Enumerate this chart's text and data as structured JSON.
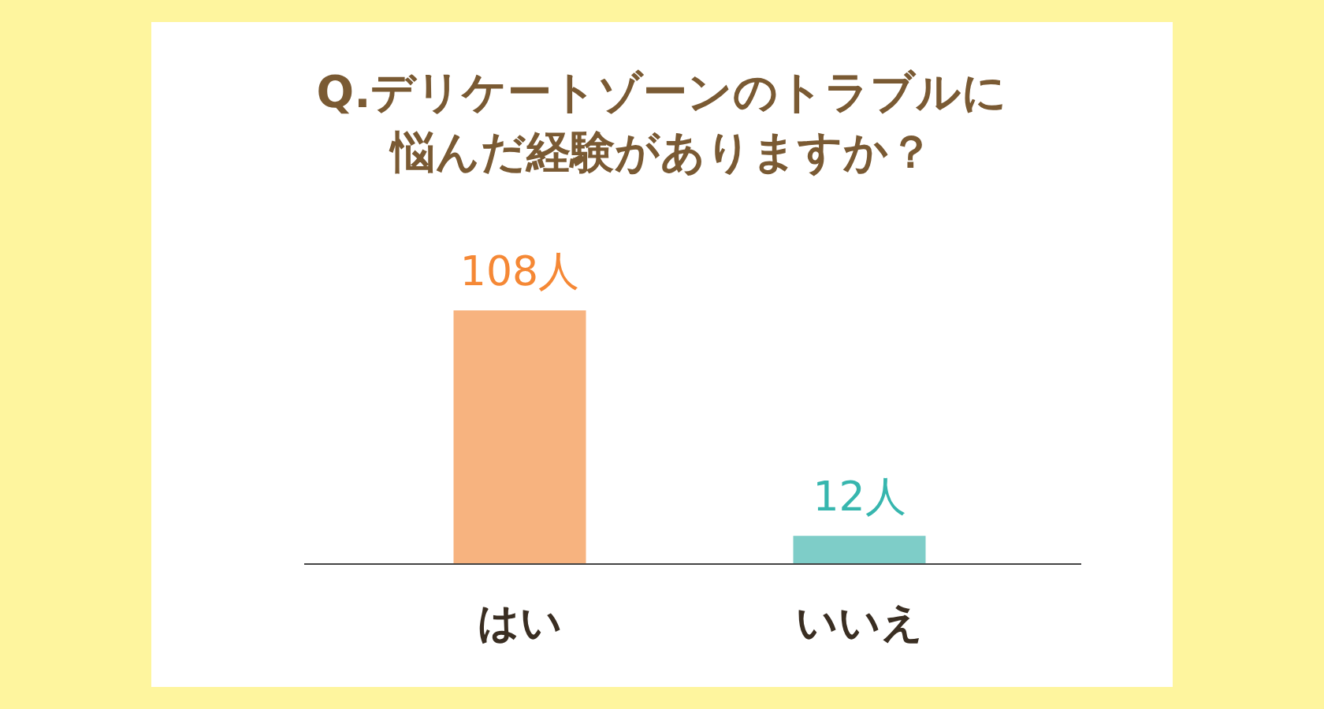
{
  "chart_data": {
    "type": "bar",
    "title": "Q.デリケートゾーンのトラブルに悩んだ経験がありますか？",
    "categories": [
      "はい",
      "いいえ"
    ],
    "values": [
      108,
      12
    ],
    "colors": [
      "#f7b37f",
      "#7ecdc8"
    ],
    "value_labels": [
      "108人",
      "12人"
    ]
  }
}
